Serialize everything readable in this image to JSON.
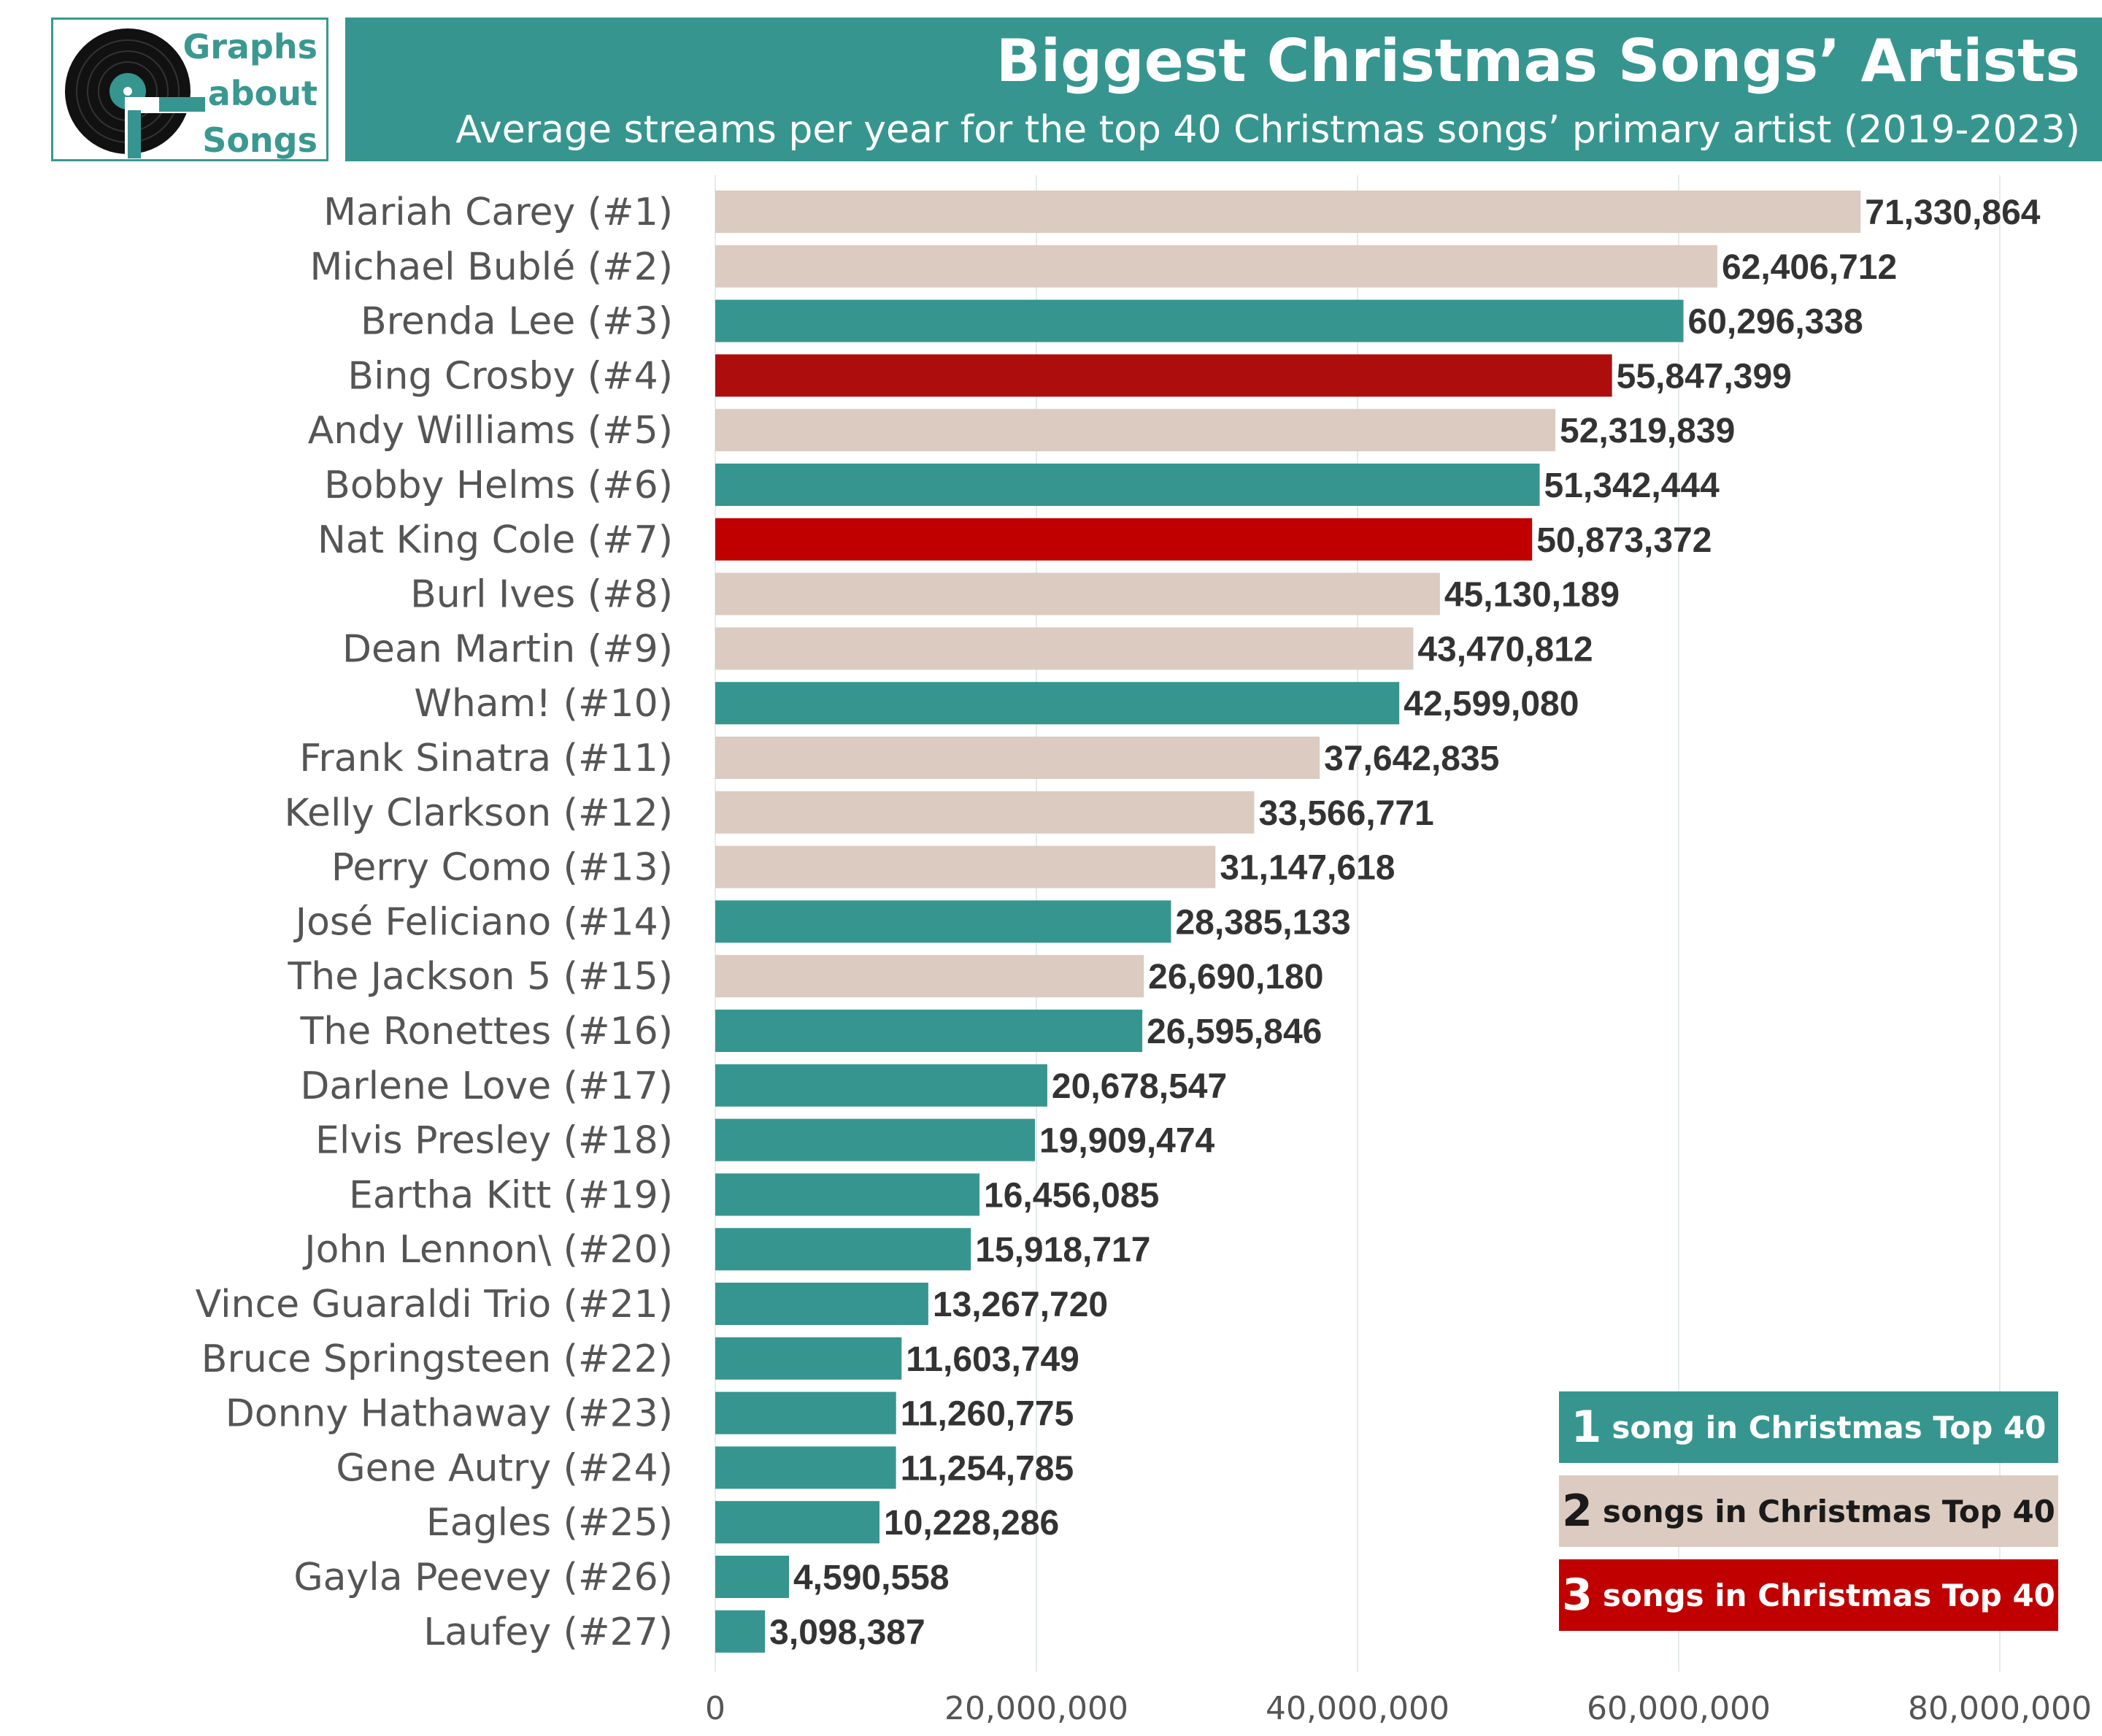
{
  "logo": {
    "line1": "Graphs",
    "line2": "about",
    "line3": "Songs"
  },
  "header": {
    "title": "Biggest Christmas Songs’ Artists",
    "subtitle": "Average streams per year for the top 40 Christmas songs’ primary artist (2019-2023)"
  },
  "colors": {
    "header_bg": "#36968f",
    "one_song": "#36968f",
    "two_songs": "#dccbc0",
    "three_songs_dark": "#ad0d0d",
    "three_songs": "#c00000"
  },
  "legend": [
    {
      "num": "1",
      "text": "song in Christmas Top 40",
      "color": "#36968f",
      "text_color": "#ffffff"
    },
    {
      "num": "2",
      "text": "songs in Christmas Top 40",
      "color": "#dccbc0",
      "text_color": "#1a1a1a"
    },
    {
      "num": "3",
      "text": "songs in Christmas Top 40",
      "color": "#c00000",
      "text_color": "#ffffff"
    }
  ],
  "chart_data": {
    "type": "bar",
    "orientation": "horizontal",
    "title": "Biggest Christmas Songs’ Artists",
    "subtitle": "Average streams per year for the top 40 Christmas songs’ primary artist (2019-2023)",
    "xlim": [
      0,
      80000000
    ],
    "x_ticks": [
      "0",
      "20,000,000",
      "40,000,000",
      "60,000,000",
      "80,000,000"
    ],
    "grid": true,
    "legend_position": "bottom-right",
    "categories": [
      "Mariah Carey (#1)",
      "Michael Bublé (#2)",
      "Brenda Lee (#3)",
      "Bing Crosby (#4)",
      "Andy Williams (#5)",
      "Bobby Helms (#6)",
      "Nat King Cole (#7)",
      "Burl Ives (#8)",
      "Dean Martin (#9)",
      "Wham! (#10)",
      "Frank Sinatra (#11)",
      "Kelly Clarkson (#12)",
      "Perry Como (#13)",
      "José Feliciano (#14)",
      "The Jackson 5 (#15)",
      "The Ronettes (#16)",
      "Darlene Love (#17)",
      "Elvis Presley (#18)",
      "Eartha Kitt (#19)",
      "John Lennon\\ (#20)",
      "Vince Guaraldi Trio (#21)",
      "Bruce Springsteen (#22)",
      "Donny Hathaway (#23)",
      "Gene Autry (#24)",
      "Eagles (#25)",
      "Gayla Peevey  (#26)",
      "Laufey (#27)"
    ],
    "values": [
      71330864,
      62406712,
      60296338,
      55847399,
      52319839,
      51342444,
      50873372,
      45130189,
      43470812,
      42599080,
      37642835,
      33566771,
      31147618,
      28385133,
      26690180,
      26595846,
      20678547,
      19909474,
      16456085,
      15918717,
      13267720,
      11603749,
      11260775,
      11254785,
      10228286,
      4590558,
      3098387
    ],
    "value_labels": [
      "71,330,864",
      "62,406,712",
      "60,296,338",
      "55,847,399",
      "52,319,839",
      "51,342,444",
      "50,873,372",
      "45,130,189",
      "43,470,812",
      "42,599,080",
      "37,642,835",
      "33,566,771",
      "31,147,618",
      "28,385,133",
      "26,690,180",
      "26,595,846",
      "20,678,547",
      "19,909,474",
      "16,456,085",
      "15,918,717",
      "13,267,720",
      "11,603,749",
      "11,260,775",
      "11,254,785",
      "10,228,286",
      "4,590,558",
      "3,098,387"
    ],
    "songs_in_top40": [
      2,
      2,
      1,
      3,
      2,
      1,
      3,
      2,
      2,
      1,
      2,
      2,
      2,
      1,
      2,
      1,
      1,
      1,
      1,
      1,
      1,
      1,
      1,
      1,
      1,
      1,
      1
    ]
  }
}
